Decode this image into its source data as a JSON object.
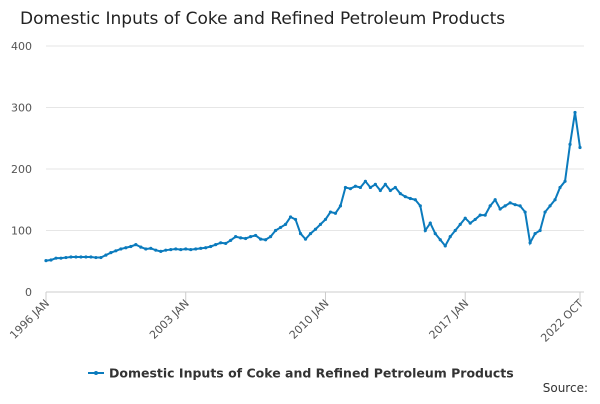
{
  "chart_data": {
    "type": "line",
    "title": "Domestic Inputs of Coke and Refined Petroleum Products",
    "source": "Source:",
    "x": [
      1996,
      1996.25,
      1996.5,
      1996.75,
      1997,
      1997.25,
      1997.5,
      1997.75,
      1998,
      1998.25,
      1998.5,
      1998.75,
      1999,
      1999.25,
      1999.5,
      1999.75,
      2000,
      2000.25,
      2000.5,
      2000.75,
      2001,
      2001.25,
      2001.5,
      2001.75,
      2002,
      2002.25,
      2002.5,
      2002.75,
      2003,
      2003.25,
      2003.5,
      2003.75,
      2004,
      2004.25,
      2004.5,
      2004.75,
      2005,
      2005.25,
      2005.5,
      2005.75,
      2006,
      2006.25,
      2006.5,
      2006.75,
      2007,
      2007.25,
      2007.5,
      2007.75,
      2008,
      2008.25,
      2008.5,
      2008.75,
      2009,
      2009.25,
      2009.5,
      2009.75,
      2010,
      2010.25,
      2010.5,
      2010.75,
      2011,
      2011.25,
      2011.5,
      2011.75,
      2012,
      2012.25,
      2012.5,
      2012.75,
      2013,
      2013.25,
      2013.5,
      2013.75,
      2014,
      2014.25,
      2014.5,
      2014.75,
      2015,
      2015.25,
      2015.5,
      2015.75,
      2016,
      2016.25,
      2016.5,
      2016.75,
      2017,
      2017.25,
      2017.5,
      2017.75,
      2018,
      2018.25,
      2018.5,
      2018.75,
      2019,
      2019.25,
      2019.5,
      2019.75,
      2020,
      2020.25,
      2020.5,
      2020.75,
      2021,
      2021.25,
      2021.5,
      2021.75,
      2022,
      2022.25,
      2022.5,
      2022.75
    ],
    "series": [
      {
        "name": "Domestic Inputs of Coke and Refined Petroleum Products",
        "color": "#0b7bbd",
        "values": [
          51,
          52,
          55,
          55,
          56,
          57,
          57,
          57,
          57,
          57,
          56,
          56,
          60,
          64,
          67,
          70,
          72,
          74,
          77,
          73,
          70,
          71,
          68,
          66,
          68,
          69,
          70,
          69,
          70,
          69,
          70,
          71,
          72,
          74,
          77,
          80,
          79,
          84,
          90,
          88,
          87,
          90,
          92,
          86,
          85,
          90,
          100,
          105,
          110,
          122,
          118,
          95,
          86,
          95,
          102,
          110,
          118,
          130,
          128,
          140,
          170,
          168,
          172,
          170,
          180,
          170,
          175,
          165,
          175,
          165,
          170,
          160,
          155,
          152,
          150,
          140,
          100,
          112,
          95,
          85,
          75,
          90,
          100,
          110,
          120,
          112,
          118,
          125,
          125,
          140,
          150,
          135,
          140,
          145,
          142,
          140,
          130,
          80,
          95,
          100,
          130,
          140,
          150,
          170,
          180,
          240,
          292,
          235
        ]
      }
    ],
    "xlim": [
      1996,
      2022.75
    ],
    "xticks": [
      {
        "value": 1996,
        "label": "1996 JAN"
      },
      {
        "value": 2003,
        "label": "2003 JAN"
      },
      {
        "value": 2010,
        "label": "2010 JAN"
      },
      {
        "value": 2017,
        "label": "2017 JAN"
      },
      {
        "value": 2022.75,
        "label": "2022 OCT"
      }
    ],
    "ylim": [
      0,
      400
    ],
    "yticks": [
      0,
      100,
      200,
      300,
      400
    ],
    "grid": true
  }
}
